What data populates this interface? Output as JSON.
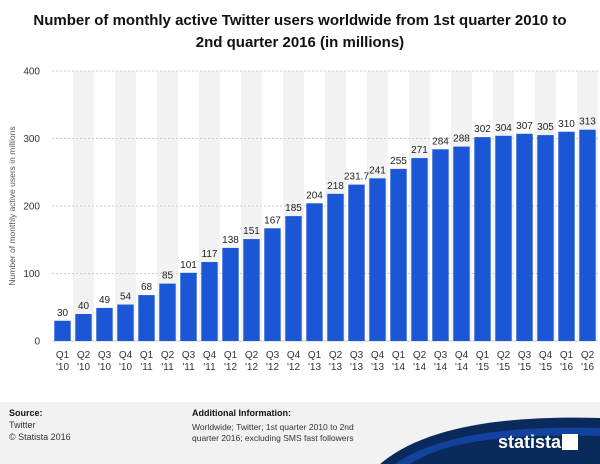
{
  "title_lines": [
    "Number of monthly active Twitter users worldwide from 1st quarter 2010 to",
    "2nd quarter 2016 (in millions)"
  ],
  "footer": {
    "source_heading": "Source:",
    "source_lines": [
      "Twitter",
      "© Statista 2016"
    ],
    "additional_heading": "Additional Information:",
    "additional_text": "Worldwide; Twitter; 1st quarter 2010 to 2nd quarter 2016; excluding SMS fast followers",
    "logo_text": "statista"
  },
  "colors": {
    "bar": "#1a56d6",
    "band": "#f2f2f2",
    "grid": "#cccccc",
    "footer_wave": "#0b2a5c"
  },
  "chart_data": {
    "type": "bar",
    "title": "Number of monthly active Twitter users worldwide from 1st quarter 2010 to 2nd quarter 2016 (in millions)",
    "ylabel": "Number of monthly active users in millions",
    "xlabel": "",
    "ylim": [
      0,
      400
    ],
    "yticks": [
      0,
      100,
      200,
      300,
      400
    ],
    "grid": true,
    "categories": [
      [
        "Q1",
        "'10"
      ],
      [
        "Q2",
        "'10"
      ],
      [
        "Q3",
        "'10"
      ],
      [
        "Q4",
        "'10"
      ],
      [
        "Q1",
        "'11"
      ],
      [
        "Q2",
        "'11"
      ],
      [
        "Q3",
        "'11"
      ],
      [
        "Q4",
        "'11"
      ],
      [
        "Q1",
        "'12"
      ],
      [
        "Q2",
        "'12"
      ],
      [
        "Q3",
        "'12"
      ],
      [
        "Q4",
        "'12"
      ],
      [
        "Q1",
        "'13"
      ],
      [
        "Q2",
        "'13"
      ],
      [
        "Q3",
        "'13"
      ],
      [
        "Q4",
        "'13"
      ],
      [
        "Q1",
        "'14"
      ],
      [
        "Q2",
        "'14"
      ],
      [
        "Q3",
        "'14"
      ],
      [
        "Q4",
        "'14"
      ],
      [
        "Q1",
        "'15"
      ],
      [
        "Q2",
        "'15"
      ],
      [
        "Q3",
        "'15"
      ],
      [
        "Q4",
        "'15"
      ],
      [
        "Q1",
        "'16"
      ],
      [
        "Q2",
        "'16"
      ]
    ],
    "values": [
      30,
      40,
      49,
      54,
      68,
      85,
      101,
      117,
      138,
      151,
      167,
      185,
      204,
      218,
      231.7,
      241,
      255,
      271,
      284,
      288,
      302,
      304,
      307,
      305,
      310,
      313
    ],
    "value_labels": [
      "30",
      "40",
      "49",
      "54",
      "68",
      "85",
      "101",
      "117",
      "138",
      "151",
      "167",
      "185",
      "204",
      "218",
      "231.7",
      "241",
      "255",
      "271",
      "284",
      "288",
      "302",
      "304",
      "307",
      "305",
      "310",
      "313"
    ]
  }
}
